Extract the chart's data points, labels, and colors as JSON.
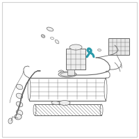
{
  "background_color": "#ffffff",
  "border_color": "#d0d0d0",
  "highlight_color": "#2a9aaa",
  "line_color": "#666666",
  "fig_width": 2.0,
  "fig_height": 2.0,
  "dpi": 100
}
